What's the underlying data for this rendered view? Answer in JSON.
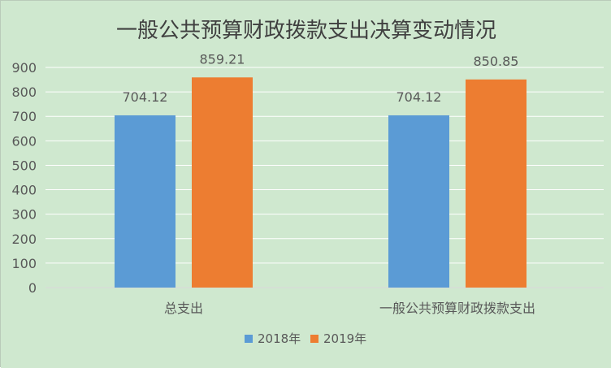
{
  "colors": {
    "background": "#cfe8cf",
    "plot_background": "#cfe8cf",
    "gridline": "#ffffff",
    "text": "#595959",
    "title": "#404040",
    "series_2018": "#5b9bd5",
    "series_2019": "#ed7d31"
  },
  "chart_data": {
    "type": "bar",
    "title": "一般公共预算财政拨款支出决算变动情况",
    "xlabel": "",
    "ylabel": "",
    "categories": [
      "总支出",
      "一般公共预算财政拨款支出"
    ],
    "series": [
      {
        "name": "2018年",
        "values": [
          704.12,
          704.12
        ],
        "labels": [
          "704.12",
          "704.12"
        ]
      },
      {
        "name": "2019年",
        "values": [
          859.21,
          850.85
        ],
        "labels": [
          "859.21",
          "850.85"
        ]
      }
    ],
    "ylim": [
      0,
      900
    ],
    "y_ticks": [
      0,
      100,
      200,
      300,
      400,
      500,
      600,
      700,
      800,
      900
    ],
    "grid": true,
    "legend_position": "bottom"
  }
}
